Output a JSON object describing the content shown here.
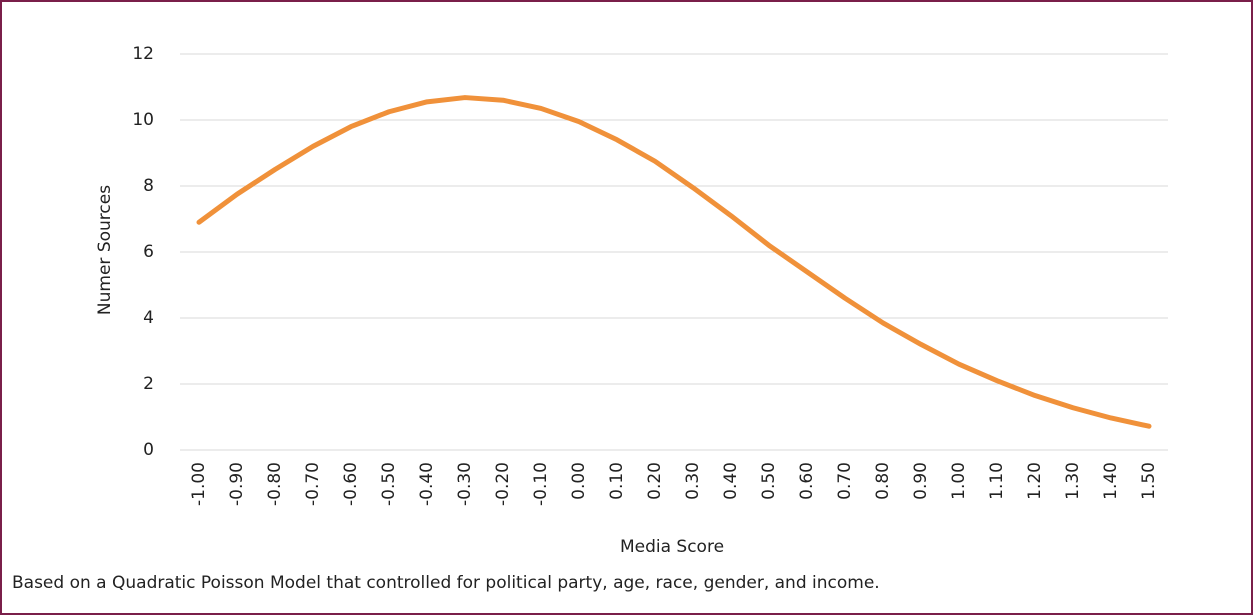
{
  "chart_data": {
    "type": "line",
    "xlabel": "Media Score",
    "ylabel": "Numer Sources",
    "caption": "Based on a Quadratic Poisson Model that controlled for political party, age, race, gender, and income.",
    "categories": [
      "-1.00",
      "-0.90",
      "-0.80",
      "-0.70",
      "-0.60",
      "-0.50",
      "-0.40",
      "-0.30",
      "-0.20",
      "-0.10",
      "0.00",
      "0.10",
      "0.20",
      "0.30",
      "0.40",
      "0.50",
      "0.60",
      "0.70",
      "0.80",
      "0.90",
      "1.00",
      "1.10",
      "1.20",
      "1.30",
      "1.40",
      "1.50"
    ],
    "values": [
      6.9,
      7.75,
      8.5,
      9.2,
      9.8,
      10.25,
      10.55,
      10.68,
      10.6,
      10.35,
      9.95,
      9.4,
      8.75,
      7.95,
      7.1,
      6.2,
      5.4,
      4.6,
      3.85,
      3.2,
      2.6,
      2.1,
      1.65,
      1.28,
      0.97,
      0.72
    ],
    "color": "#f0913a",
    "ylim": [
      0,
      12
    ],
    "yticks": [
      0,
      2,
      4,
      6,
      8,
      10,
      12
    ],
    "grid": true
  }
}
